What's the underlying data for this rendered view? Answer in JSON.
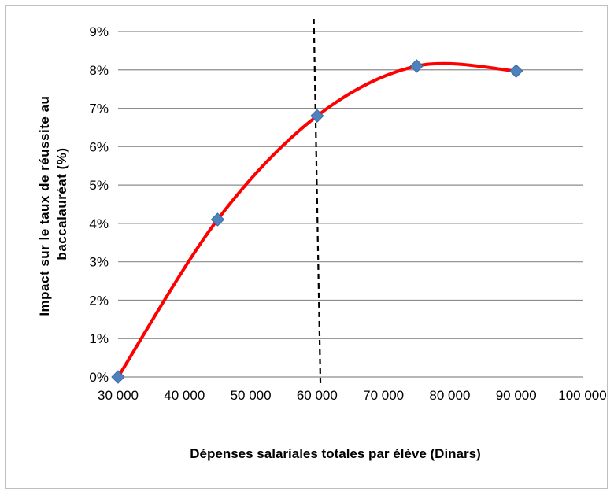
{
  "chart_data": {
    "type": "line",
    "title": "",
    "xlabel": "Dépenses salariales totales par élève (Dinars)",
    "ylabel_lines": [
      "Impact sur le taux de réussite au",
      "baccalauréat  (%)"
    ],
    "x_ticks": [
      "30 000",
      "40 000",
      "50 000",
      "60 000",
      "70 000",
      "80 000",
      "90 000",
      "100 000"
    ],
    "y_ticks": [
      "0%",
      "1%",
      "2%",
      "3%",
      "4%",
      "5%",
      "6%",
      "7%",
      "8%",
      "9%"
    ],
    "xlim": [
      30000,
      100000
    ],
    "ylim": [
      0,
      9
    ],
    "grid": "horizontal",
    "legend": "none",
    "series": [
      {
        "x": [
          30000,
          45000,
          60000,
          75000,
          90000
        ],
        "y": [
          0.0,
          4.1,
          6.8,
          8.1,
          7.97
        ],
        "marker": "diamond",
        "marker_color": "#4f81bd",
        "line_color": "#ff0000",
        "smooth": true
      }
    ],
    "vertical_line": {
      "x_top": 59500,
      "x_bottom": 60500,
      "style": "dashed",
      "color": "#000000"
    }
  }
}
